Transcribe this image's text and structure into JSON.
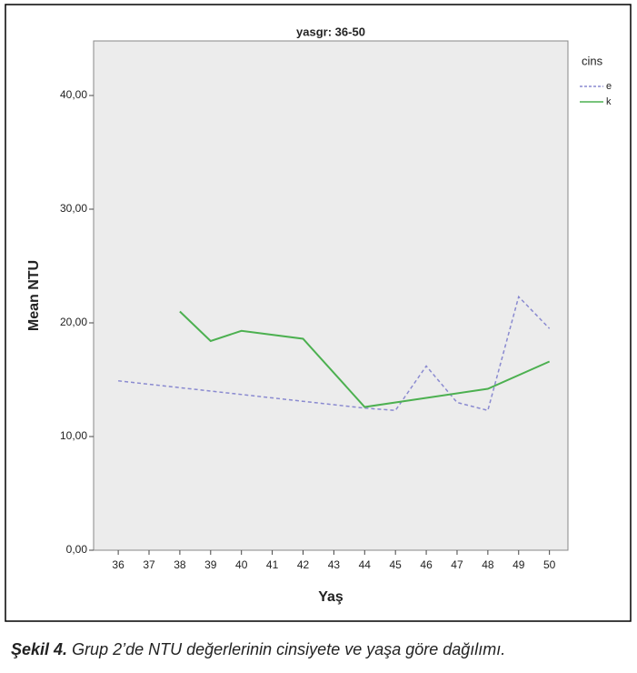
{
  "chart_data": {
    "type": "line",
    "title": "yasgr: 36-50",
    "x_label": "Yaş",
    "y_label": "Mean NTU",
    "xlim": [
      35.2,
      50.6
    ],
    "xticks": [
      36,
      37,
      38,
      39,
      40,
      41,
      42,
      43,
      44,
      45,
      46,
      47,
      48,
      49,
      50
    ],
    "ylim": [
      0,
      44.8
    ],
    "yticks": [
      {
        "value": 0,
        "label": "0,00"
      },
      {
        "value": 10,
        "label": "10,00"
      },
      {
        "value": 20,
        "label": "20,00"
      },
      {
        "value": 30,
        "label": "30,00"
      },
      {
        "value": 40,
        "label": "40,00"
      }
    ],
    "legend_title": "cins",
    "legend": "outside-right",
    "series": [
      {
        "name": "e",
        "color": "#8a8ad0",
        "dashed": true,
        "x": [
          36,
          44,
          45,
          46,
          47,
          48,
          49,
          50
        ],
        "values": [
          14.9,
          12.5,
          12.3,
          16.2,
          13.0,
          12.3,
          22.3,
          19.5
        ]
      },
      {
        "name": "k",
        "color": "#4cb050",
        "dashed": false,
        "x": [
          38,
          39,
          40,
          42,
          44,
          48,
          50
        ],
        "values": [
          21.0,
          18.4,
          19.3,
          18.6,
          12.6,
          14.2,
          16.6
        ]
      }
    ]
  },
  "caption": {
    "label": "Şekil 4.",
    "text": "Grup 2’de NTU değerlerinin cinsiyete ve yaşa göre dağılımı."
  }
}
